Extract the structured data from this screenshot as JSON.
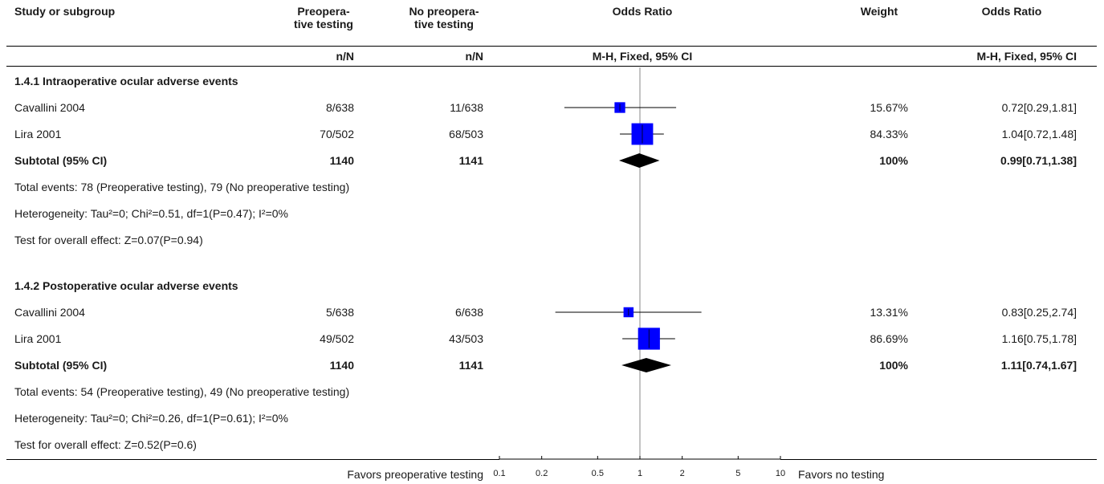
{
  "header": {
    "study_col": "Study or subgroup",
    "exp_col": [
      "Preopera-",
      "tive testing"
    ],
    "ctrl_col": [
      "No preopera-",
      "tive testing"
    ],
    "or_col": "Odds Ratio",
    "weight_col": "Weight",
    "or_col2": "Odds Ratio",
    "exp_sub": "n/N",
    "ctrl_sub": "n/N",
    "or_sub": "M-H, Fixed, 95% CI",
    "or_sub2": "M-H, Fixed, 95% CI"
  },
  "groups": [
    {
      "title": "1.4.1 Intraoperative ocular adverse events",
      "studies": [
        {
          "name": "Cavallini 2004",
          "exp": "8/638",
          "ctrl": "11/638",
          "weight": "15.67%",
          "ci_text": "0.72[0.29,1.81]"
        },
        {
          "name": "Lira 2001",
          "exp": "70/502",
          "ctrl": "68/503",
          "weight": "84.33%",
          "ci_text": "1.04[0.72,1.48]"
        }
      ],
      "subtotal": {
        "label": "Subtotal (95% CI)",
        "exp": "1140",
        "ctrl": "1141",
        "weight": "100%",
        "ci_text": "0.99[0.71,1.38]"
      },
      "notes": [
        "Total events: 78 (Preoperative testing), 79 (No preoperative testing)",
        "Heterogeneity: Tau²=0; Chi²=0.51, df=1(P=0.47); I²=0%",
        "Test for overall effect: Z=0.07(P=0.94)"
      ]
    },
    {
      "title": "1.4.2 Postoperative ocular adverse events",
      "studies": [
        {
          "name": "Cavallini 2004",
          "exp": "5/638",
          "ctrl": "6/638",
          "weight": "13.31%",
          "ci_text": "0.83[0.25,2.74]"
        },
        {
          "name": "Lira 2001",
          "exp": "49/502",
          "ctrl": "43/503",
          "weight": "86.69%",
          "ci_text": "1.16[0.75,1.78]"
        }
      ],
      "subtotal": {
        "label": "Subtotal (95% CI)",
        "exp": "1140",
        "ctrl": "1141",
        "weight": "100%",
        "ci_text": "1.11[0.74,1.67]"
      },
      "notes": [
        "Total events: 54 (Preoperative testing), 49 (No preoperative testing)",
        "Heterogeneity: Tau²=0; Chi²=0.26, df=1(P=0.61); I²=0%",
        "Test for overall effect: Z=0.52(P=0.6)"
      ]
    }
  ],
  "footer": {
    "favors_left": "Favors preoperative testing",
    "favors_right": "Favors no testing"
  },
  "colors": {
    "square": "#0000ff",
    "diamond": "#000000",
    "line": "#000000"
  },
  "chart_data": {
    "type": "forest",
    "scale": "log",
    "xlim": [
      0.1,
      10
    ],
    "null_value": 1,
    "ticks": [
      0.1,
      0.2,
      0.5,
      1,
      2,
      5,
      10
    ],
    "tick_labels": [
      "0.1",
      "0.2",
      "0.5",
      "1",
      "2",
      "5",
      "10"
    ],
    "rows": [
      {
        "kind": "study",
        "group": 0,
        "or": 0.72,
        "lo": 0.29,
        "hi": 1.81,
        "weight": 15.67
      },
      {
        "kind": "study",
        "group": 0,
        "or": 1.04,
        "lo": 0.72,
        "hi": 1.48,
        "weight": 84.33
      },
      {
        "kind": "subtotal",
        "group": 0,
        "or": 0.99,
        "lo": 0.71,
        "hi": 1.38,
        "weight": 100
      },
      {
        "kind": "study",
        "group": 1,
        "or": 0.83,
        "lo": 0.25,
        "hi": 2.74,
        "weight": 13.31
      },
      {
        "kind": "study",
        "group": 1,
        "or": 1.16,
        "lo": 0.75,
        "hi": 1.78,
        "weight": 86.69
      },
      {
        "kind": "subtotal",
        "group": 1,
        "or": 1.11,
        "lo": 0.74,
        "hi": 1.67,
        "weight": 100
      }
    ]
  }
}
